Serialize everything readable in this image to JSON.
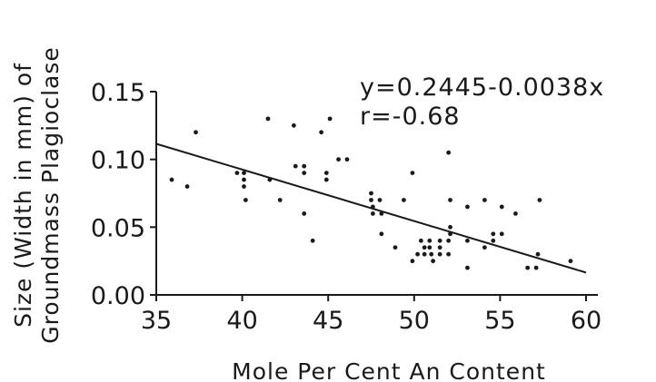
{
  "chart_data": {
    "type": "scatter",
    "title": "",
    "xlabel": "Mole Per Cent An Content",
    "ylabel_lines": [
      "Size (Width in mm) of",
      "Groundmass Plagioclase"
    ],
    "xlim": [
      35,
      60
    ],
    "ylim": [
      0.0,
      0.15
    ],
    "x_ticks": [
      35,
      40,
      45,
      50,
      55,
      60
    ],
    "x_tick_labels": [
      "35",
      "40",
      "45",
      "50",
      "55",
      "60"
    ],
    "y_ticks": [
      0.0,
      0.05,
      0.1,
      0.15
    ],
    "y_tick_labels": [
      "0.00",
      "0.05",
      "0.10",
      "0.15"
    ],
    "grid": false,
    "annotations": [
      "y=0.2445-0.0038x",
      "r=-0.68"
    ],
    "regression": {
      "intercept": 0.2445,
      "slope": -0.0038,
      "x_range": [
        35,
        60
      ]
    },
    "points": [
      [
        35.9,
        0.085
      ],
      [
        36.8,
        0.08
      ],
      [
        37.3,
        0.12
      ],
      [
        39.7,
        0.09
      ],
      [
        40.1,
        0.09
      ],
      [
        40.1,
        0.085
      ],
      [
        40.1,
        0.08
      ],
      [
        40.2,
        0.07
      ],
      [
        41.5,
        0.13
      ],
      [
        41.6,
        0.085
      ],
      [
        42.2,
        0.07
      ],
      [
        43.0,
        0.125
      ],
      [
        43.1,
        0.095
      ],
      [
        43.6,
        0.095
      ],
      [
        43.6,
        0.09
      ],
      [
        43.6,
        0.06
      ],
      [
        44.1,
        0.04
      ],
      [
        44.6,
        0.12
      ],
      [
        44.9,
        0.09
      ],
      [
        44.9,
        0.085
      ],
      [
        45.1,
        0.13
      ],
      [
        45.6,
        0.1
      ],
      [
        46.1,
        0.1
      ],
      [
        47.5,
        0.075
      ],
      [
        47.5,
        0.07
      ],
      [
        47.6,
        0.065
      ],
      [
        47.6,
        0.06
      ],
      [
        48.0,
        0.07
      ],
      [
        48.1,
        0.06
      ],
      [
        48.1,
        0.045
      ],
      [
        48.9,
        0.035
      ],
      [
        49.4,
        0.07
      ],
      [
        49.9,
        0.09
      ],
      [
        49.9,
        0.025
      ],
      [
        50.2,
        0.03
      ],
      [
        50.4,
        0.04
      ],
      [
        50.6,
        0.035
      ],
      [
        50.6,
        0.03
      ],
      [
        50.9,
        0.04
      ],
      [
        50.9,
        0.035
      ],
      [
        51.0,
        0.03
      ],
      [
        51.1,
        0.025
      ],
      [
        51.5,
        0.04
      ],
      [
        51.5,
        0.035
      ],
      [
        51.5,
        0.03
      ],
      [
        52.0,
        0.105
      ],
      [
        52.1,
        0.07
      ],
      [
        52.1,
        0.05
      ],
      [
        52.1,
        0.045
      ],
      [
        52.0,
        0.04
      ],
      [
        52.0,
        0.03
      ],
      [
        53.1,
        0.065
      ],
      [
        53.1,
        0.04
      ],
      [
        53.1,
        0.02
      ],
      [
        54.1,
        0.07
      ],
      [
        54.1,
        0.035
      ],
      [
        54.6,
        0.045
      ],
      [
        54.6,
        0.04
      ],
      [
        55.1,
        0.065
      ],
      [
        55.1,
        0.045
      ],
      [
        55.9,
        0.06
      ],
      [
        56.6,
        0.02
      ],
      [
        57.1,
        0.02
      ],
      [
        57.3,
        0.07
      ],
      [
        57.2,
        0.03
      ],
      [
        59.1,
        0.025
      ]
    ]
  }
}
